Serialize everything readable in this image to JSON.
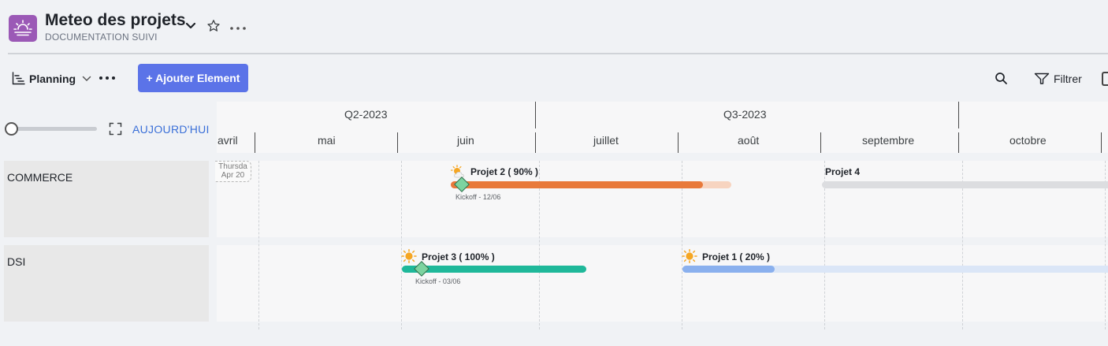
{
  "header": {
    "title": "Meteo des projets",
    "subtitle": "DOCUMENTATION SUIVI"
  },
  "toolbar": {
    "view_label": "Planning",
    "add_label": "+ Ajouter Element",
    "filter_label": "Filtrer",
    "today_label": "AUJOURD'HUI"
  },
  "timeline": {
    "quarters": [
      "Q2-2023",
      "Q3-2023"
    ],
    "months": [
      "avril",
      "mai",
      "juin",
      "juillet",
      "août",
      "septembre",
      "octobre"
    ],
    "today_marker": {
      "day": "Thursda",
      "date": "Apr 20"
    }
  },
  "rows": [
    {
      "label": "COMMERCE",
      "projects": [
        {
          "label": "Projet 2 ( 90% )",
          "weather": "sun-cloud-icon",
          "progress": 0.9,
          "color": "#e8793a",
          "bg_color": "#f7d4c0",
          "milestone": "Kickoff - 12/06"
        },
        {
          "label": "Projet 4",
          "weather": "",
          "color": "#dcdde0"
        }
      ]
    },
    {
      "label": "DSI",
      "projects": [
        {
          "label": "Projet 3 ( 100% )",
          "weather": "sun-icon",
          "progress": 1.0,
          "color": "#1fb89a",
          "milestone": "Kickoff - 03/06"
        },
        {
          "label": "Projet 1 ( 20% )",
          "weather": "sun-icon",
          "progress": 0.2,
          "color": "#8ab0ee",
          "bg_color": "#dbe6f7"
        }
      ]
    }
  ],
  "colors": {
    "accent": "#5b73e8",
    "app_icon": "#9b59b6",
    "today_link": "#3a6fd8"
  }
}
